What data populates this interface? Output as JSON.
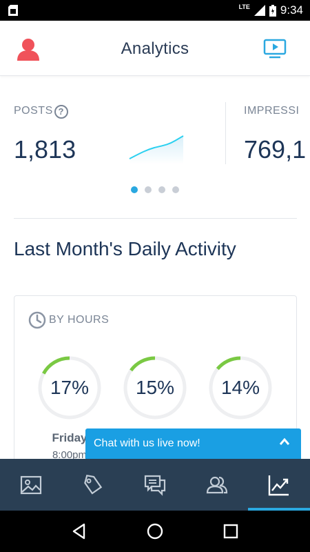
{
  "status_bar": {
    "network": "LTE",
    "time": "9:34"
  },
  "app_bar": {
    "title": "Analytics",
    "left_icon": "profile-icon",
    "right_icon": "video-tutorial-icon"
  },
  "metrics": [
    {
      "label": "POSTS",
      "value": "1,813",
      "has_help": true
    },
    {
      "label": "IMPRESSI",
      "value": "769,1"
    }
  ],
  "carousel": {
    "pages": 4,
    "active": 0
  },
  "section_title": "Last Month's Daily Activity",
  "by_hours": {
    "heading": "BY HOURS",
    "items": [
      {
        "percent": "17%",
        "fraction": 0.17,
        "day": "Friday",
        "time": "8:00pm"
      },
      {
        "percent": "15%",
        "fraction": 0.15
      },
      {
        "percent": "14%",
        "fraction": 0.14
      }
    ]
  },
  "chat_banner": {
    "label": "Chat with us live now!"
  },
  "bottom_nav": [
    {
      "icon": "image-icon"
    },
    {
      "icon": "tag-icon"
    },
    {
      "icon": "comments-icon"
    },
    {
      "icon": "users-icon"
    },
    {
      "icon": "analytics-icon",
      "active": true
    }
  ],
  "colors": {
    "accent": "#2aa8e0",
    "ring_fill": "#7ac943",
    "ring_track": "#eeeff1",
    "nav_bg": "#2a3f54",
    "chat_bg": "#1a9fe3",
    "profile": "#f0525a"
  }
}
